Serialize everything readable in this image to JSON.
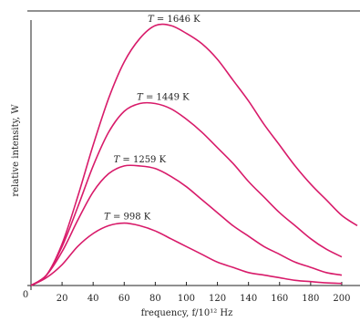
{
  "chart_data": {
    "type": "line",
    "title": "",
    "xlabel": "frequency, f/10¹² Hz",
    "ylabel": "relative intensity, W",
    "xlim": [
      0,
      210
    ],
    "ylim": [
      0,
      1.0
    ],
    "x_ticks": [
      0,
      20,
      40,
      60,
      80,
      100,
      120,
      140,
      160,
      180,
      200
    ],
    "x_tick_labels": [
      "0",
      "20",
      "40",
      "60",
      "80",
      "100",
      "120",
      "140",
      "160",
      "180",
      "200"
    ],
    "grid": false,
    "legend": "none",
    "line_color": "#d81b6a",
    "series": [
      {
        "name": "T = 1646 K",
        "x": [
          0,
          10,
          20,
          30,
          40,
          50,
          60,
          70,
          80,
          90,
          100,
          110,
          120,
          130,
          140,
          150,
          160,
          170,
          180,
          190,
          200,
          210
        ],
        "values": [
          0,
          0.04,
          0.16,
          0.34,
          0.54,
          0.72,
          0.86,
          0.95,
          1.0,
          1.0,
          0.97,
          0.93,
          0.87,
          0.79,
          0.71,
          0.62,
          0.54,
          0.46,
          0.39,
          0.33,
          0.27,
          0.23
        ]
      },
      {
        "name": "T = 1449 K",
        "x": [
          0,
          10,
          20,
          30,
          40,
          50,
          60,
          70,
          80,
          90,
          100,
          110,
          120,
          130,
          140,
          150,
          160,
          170,
          180,
          190,
          200
        ],
        "values": [
          0,
          0.04,
          0.15,
          0.3,
          0.46,
          0.59,
          0.67,
          0.7,
          0.7,
          0.68,
          0.64,
          0.59,
          0.53,
          0.47,
          0.4,
          0.34,
          0.28,
          0.23,
          0.18,
          0.14,
          0.11
        ]
      },
      {
        "name": "T = 1259 K",
        "x": [
          0,
          10,
          20,
          30,
          40,
          50,
          60,
          70,
          80,
          90,
          100,
          110,
          120,
          130,
          140,
          150,
          160,
          170,
          180,
          190,
          200
        ],
        "values": [
          0,
          0.04,
          0.13,
          0.25,
          0.36,
          0.43,
          0.46,
          0.46,
          0.45,
          0.42,
          0.38,
          0.33,
          0.28,
          0.23,
          0.19,
          0.15,
          0.12,
          0.09,
          0.07,
          0.05,
          0.04
        ]
      },
      {
        "name": "T = 998 K",
        "x": [
          0,
          10,
          20,
          30,
          40,
          50,
          60,
          70,
          80,
          90,
          100,
          110,
          120,
          130,
          140,
          150,
          160,
          170,
          180,
          190,
          200
        ],
        "values": [
          0,
          0.03,
          0.08,
          0.15,
          0.2,
          0.23,
          0.24,
          0.23,
          0.21,
          0.18,
          0.15,
          0.12,
          0.09,
          0.07,
          0.05,
          0.04,
          0.03,
          0.02,
          0.015,
          0.01,
          0.008
        ]
      }
    ],
    "curve_labels": [
      {
        "text_T": "T",
        "text_value": " = 1646 K",
        "series": 0,
        "at_x": 92
      },
      {
        "text_T": "T",
        "text_value": " = 1449 K",
        "series": 1,
        "at_x": 85
      },
      {
        "text_T": "T",
        "text_value": " = 1259 K",
        "series": 2,
        "at_x": 70
      },
      {
        "text_T": "T",
        "text_value": " = 998 K",
        "series": 3,
        "at_x": 62
      }
    ]
  }
}
